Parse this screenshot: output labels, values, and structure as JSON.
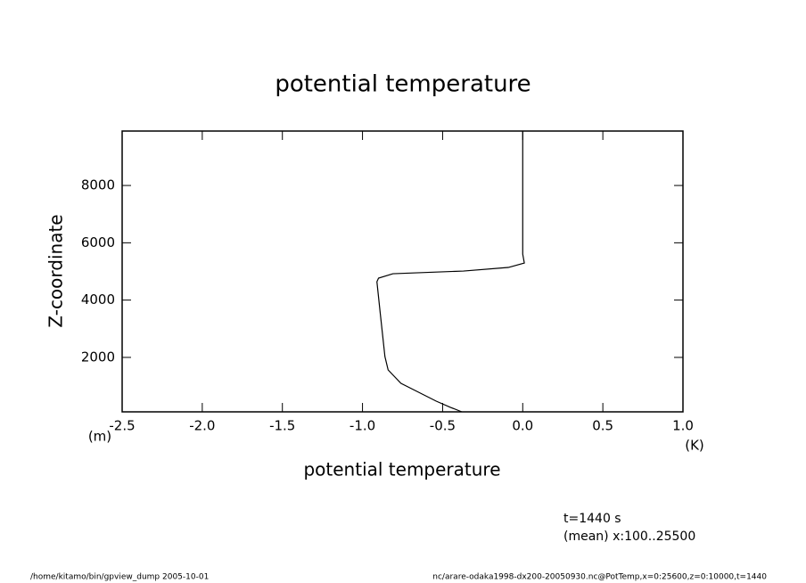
{
  "chart_data": {
    "type": "line",
    "title": "potential temperature",
    "x_label": "potential temperature",
    "y_label": "Z-coordinate",
    "x_unit": "(K)",
    "y_unit": "(m)",
    "annotations": [
      "t=1440 s",
      "(mean) x:100..25500"
    ],
    "footer_left": "/home/kitamo/bin/gpview_dump  2005-10-01",
    "footer_right": "nc/arare-odaka1998-dx200-20050930.nc@PotTemp,x=0:25600,z=0:10000,t=1440",
    "xlim": [
      -2.5,
      1.0
    ],
    "ylim": [
      100,
      9900
    ],
    "xticks": [
      -2.5,
      {
        "value": -2.0,
        "label": "-2.0"
      },
      -1.5,
      {
        "value": -1.0,
        "label": "-1.0"
      },
      -0.5,
      {
        "value": 0.0,
        "label": "0.0"
      },
      0.5,
      {
        "value": 1.0,
        "label": "1.0"
      }
    ],
    "yticks": [
      2000,
      4000,
      6000,
      8000
    ],
    "series": [
      {
        "color": "#000000",
        "x": [
          -0.38,
          -0.45,
          -0.54,
          -0.65,
          -0.76,
          -0.84,
          -0.86,
          -0.89,
          -0.91,
          -0.9,
          -0.81,
          -0.37,
          -0.09,
          0.01,
          0.0,
          0.0,
          0.0
        ],
        "y": [
          100,
          255,
          473,
          784,
          1095,
          1562,
          2028,
          3583,
          4641,
          4766,
          4921,
          5014,
          5139,
          5294,
          5605,
          6694,
          9900
        ]
      }
    ]
  }
}
